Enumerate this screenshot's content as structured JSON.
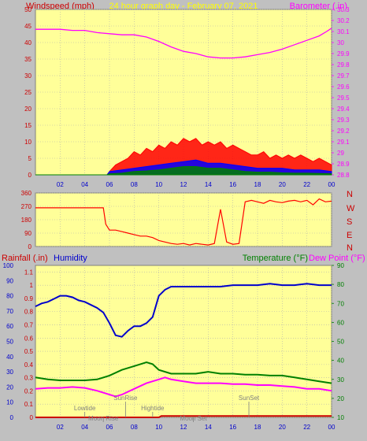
{
  "header": {
    "left_label": "Windspeed (mph)",
    "center_label": "24 hour graph day - February 07, 2021",
    "right_label": "Barometer (.in)"
  },
  "lower_header": {
    "rainfall_label": "Rainfall (.in)",
    "humidity_label": "Humidity",
    "temperature_label": "Temperature (°F)",
    "dewpoint_label": "Dew Point (°F)"
  },
  "colors": {
    "background": "#c0c0c0",
    "plot_bg": "#ffff99",
    "gust": "#ff0000",
    "wind_avg": "#0000ff",
    "wind_low": "#008000",
    "barometer": "#ff00ff",
    "direction": "#ff0000",
    "humidity": "#0000cc",
    "temperature": "#008000",
    "dewpoint": "#ff00ff",
    "rain": "#cc0000",
    "axis_red": "#cc0000",
    "axis_magenta": "#ff00ff",
    "axis_blue": "#0000cc",
    "axis_green": "#008000",
    "header_yellow": "#ffff00"
  },
  "x_tick_labels": [
    "02",
    "04",
    "06",
    "08",
    "10",
    "12",
    "14",
    "16",
    "18",
    "20",
    "22",
    "00"
  ],
  "events": [
    {
      "label": "Lowtide",
      "hour": 4.0,
      "row": 1
    },
    {
      "label": "SunRise",
      "hour": 7.3,
      "row": 0
    },
    {
      "label": "Moon Rise",
      "hour": 5.5,
      "row": 2
    },
    {
      "label": "Hightide",
      "hour": 9.5,
      "row": 1
    },
    {
      "label": "Moon Set",
      "hour": 12.8,
      "row": 2
    },
    {
      "label": "SunSet",
      "hour": 17.3,
      "row": 0
    }
  ],
  "compass": [
    "N",
    "W",
    "S",
    "E",
    "N"
  ],
  "chart_data": [
    {
      "type": "line",
      "name": "wind-barometer",
      "x_unit": "hour",
      "x_range": [
        0,
        24
      ],
      "left_axis": {
        "ylim": [
          0,
          50
        ],
        "ticks": [
          0,
          5,
          10,
          15,
          20,
          25,
          30,
          35,
          40,
          45,
          50
        ]
      },
      "right_axis": {
        "ylim": [
          28.8,
          30.3
        ],
        "ticks": [
          28.8,
          28.9,
          29,
          29.1,
          29.2,
          29.3,
          29.4,
          29.5,
          29.6,
          29.7,
          29.8,
          29.9,
          30,
          30.1,
          30.2,
          30.3
        ]
      },
      "series": [
        {
          "name": "Windspeed (mph)",
          "axis": "left",
          "style": "gust",
          "x": [
            0,
            1,
            2,
            3,
            4,
            5,
            5.8,
            6,
            6.5,
            7,
            7.5,
            8,
            8.5,
            9,
            9.5,
            10,
            10.5,
            11,
            11.5,
            12,
            12.5,
            13,
            13.5,
            14,
            14.5,
            15,
            15.5,
            16,
            16.5,
            17,
            17.5,
            18,
            18.5,
            19,
            19.5,
            20,
            20.5,
            21,
            21.5,
            22,
            22.5,
            23,
            23.5,
            24
          ],
          "y": [
            0,
            0,
            0,
            0,
            0,
            0,
            0,
            1,
            3,
            4,
            5,
            7,
            6,
            8,
            7,
            9,
            8,
            10,
            9,
            11,
            10,
            11,
            9,
            10,
            9,
            10,
            8,
            9,
            8,
            7,
            6,
            6,
            7,
            5,
            6,
            5,
            6,
            5,
            6,
            5,
            4,
            5,
            4,
            3
          ]
        },
        {
          "name": "Wind average",
          "axis": "left",
          "style": "avg",
          "x": [
            0,
            5.8,
            6,
            7,
            8,
            9,
            10,
            11,
            12,
            13,
            14,
            15,
            16,
            17,
            18,
            19,
            20,
            21,
            22,
            23,
            24
          ],
          "y": [
            0,
            0,
            1,
            1.5,
            2,
            2.5,
            3,
            3.5,
            4,
            4.5,
            3.5,
            3.5,
            3,
            2.5,
            2,
            2,
            2,
            1.5,
            1.5,
            1.5,
            1
          ]
        },
        {
          "name": "Wind low",
          "axis": "left",
          "style": "low",
          "x": [
            0,
            5.8,
            6,
            7,
            8,
            9,
            10,
            11,
            12,
            13,
            14,
            15,
            16,
            17,
            18,
            19,
            20,
            21,
            22,
            23,
            24
          ],
          "y": [
            0,
            0,
            0.3,
            0.5,
            1,
            1.2,
            1.5,
            2,
            2.5,
            2.5,
            2,
            2,
            1.5,
            1,
            0.8,
            0.8,
            0.6,
            0.5,
            0.5,
            0.4,
            0.3
          ]
        },
        {
          "name": "Barometer (.in)",
          "axis": "right",
          "style": "baro",
          "x": [
            0,
            1,
            2,
            3,
            4,
            5,
            6,
            7,
            8,
            9,
            10,
            11,
            12,
            13,
            14,
            15,
            16,
            17,
            18,
            19,
            20,
            21,
            22,
            23,
            23.6,
            24
          ],
          "y": [
            30.12,
            30.12,
            30.12,
            30.11,
            30.11,
            30.09,
            30.08,
            30.07,
            30.07,
            30.05,
            30.01,
            29.96,
            29.92,
            29.9,
            29.87,
            29.86,
            29.86,
            29.87,
            29.89,
            29.91,
            29.94,
            29.98,
            30.02,
            30.06,
            30.1,
            30.13
          ]
        }
      ]
    },
    {
      "type": "scatter",
      "name": "wind-direction",
      "x_unit": "hour",
      "x_range": [
        0,
        24
      ],
      "ylim": [
        0,
        360
      ],
      "ticks": [
        0,
        90,
        180,
        270,
        360
      ],
      "series": [
        {
          "name": "Wind direction",
          "x": [
            0,
            1,
            2,
            3,
            4,
            5,
            5.5,
            5.7,
            6,
            6.5,
            7,
            7.5,
            8,
            8.5,
            9,
            9.5,
            10,
            10.5,
            11,
            11.5,
            12,
            12.5,
            13,
            13.5,
            14,
            14.5,
            15,
            15.5,
            16,
            16.5,
            17,
            17.5,
            18,
            18.5,
            19,
            19.5,
            20,
            20.5,
            21,
            21.5,
            22,
            22.5,
            23,
            23.5,
            24
          ],
          "y": [
            260,
            260,
            260,
            260,
            260,
            260,
            260,
            150,
            110,
            110,
            100,
            90,
            80,
            70,
            70,
            60,
            40,
            30,
            20,
            15,
            20,
            10,
            20,
            15,
            10,
            20,
            250,
            30,
            15,
            20,
            300,
            310,
            300,
            290,
            310,
            300,
            295,
            305,
            310,
            300,
            310,
            280,
            320,
            300,
            305
          ]
        }
      ]
    },
    {
      "type": "line",
      "name": "humidity-temperature",
      "x_unit": "hour",
      "x_range": [
        0,
        24
      ],
      "left_outer_axis": {
        "ylim": [
          0,
          100
        ],
        "ticks": [
          0,
          10,
          20,
          30,
          40,
          50,
          60,
          70,
          80,
          90,
          100
        ]
      },
      "left_inner_axis": {
        "ylim": [
          0,
          1.15
        ],
        "ticks": [
          0,
          0.1,
          0.2,
          0.3,
          0.4,
          0.5,
          0.6,
          0.7,
          0.8,
          0.9,
          1,
          1.1
        ]
      },
      "right_axis": {
        "ylim": [
          10,
          90
        ],
        "ticks": [
          10,
          20,
          30,
          40,
          50,
          60,
          70,
          80,
          90
        ]
      },
      "series": [
        {
          "name": "Humidity",
          "axis": "left_outer",
          "style": "hum",
          "x": [
            0,
            0.5,
            1,
            1.5,
            2,
            2.5,
            3,
            3.5,
            4,
            4.5,
            5,
            5.5,
            6,
            6.5,
            7,
            7.5,
            8,
            8.5,
            9,
            9.5,
            10,
            10.5,
            11,
            12,
            13,
            14,
            15,
            16,
            17,
            18,
            19,
            20,
            21,
            22,
            23,
            24
          ],
          "y": [
            73,
            75,
            76,
            78,
            80,
            80,
            79,
            77,
            76,
            74,
            72,
            69,
            62,
            54,
            53,
            57,
            60,
            60,
            62,
            66,
            80,
            84,
            86,
            86,
            86,
            86,
            86,
            87,
            87,
            87,
            88,
            87,
            87,
            88,
            87,
            87
          ]
        },
        {
          "name": "Temperature (°F)",
          "axis": "right",
          "style": "temp",
          "x": [
            0,
            1,
            2,
            3,
            4,
            5,
            6,
            7,
            8,
            9,
            9.5,
            10,
            11,
            12,
            13,
            14,
            15,
            16,
            17,
            18,
            19,
            20,
            21,
            22,
            23,
            24
          ],
          "y": [
            31,
            30,
            29.5,
            29.5,
            29.5,
            30,
            32,
            35,
            37,
            39,
            38,
            35,
            33,
            33,
            33,
            34,
            33,
            33,
            32.5,
            32.5,
            32,
            32,
            31,
            30,
            29,
            28
          ]
        },
        {
          "name": "Dew Point (°F)",
          "axis": "right",
          "style": "dew",
          "x": [
            0,
            1,
            2,
            3,
            4,
            5,
            6,
            6.5,
            7,
            8,
            9,
            10,
            10.5,
            11,
            12,
            13,
            14,
            15,
            16,
            17,
            18,
            19,
            20,
            21,
            22,
            23,
            24
          ],
          "y": [
            25,
            25.5,
            25.5,
            26,
            25.5,
            24,
            22,
            21,
            22,
            25,
            28,
            30,
            31,
            30,
            29,
            28,
            28,
            28,
            27.5,
            27.5,
            27,
            27,
            26.5,
            26,
            25,
            25,
            24
          ]
        },
        {
          "name": "Rainfall (.in)",
          "axis": "left_inner",
          "style": "rain",
          "x": [
            0,
            1,
            2,
            3,
            4,
            5,
            6,
            7,
            8,
            9,
            10,
            10.2,
            11,
            12,
            13,
            14,
            15,
            16,
            17,
            18,
            19,
            20,
            21,
            22,
            23,
            24
          ],
          "y": [
            0,
            0,
            0,
            0,
            0,
            0,
            0,
            0,
            0,
            0,
            0,
            0.01,
            0.01,
            0.01,
            0.01,
            0.01,
            0.01,
            0.01,
            0.01,
            0.01,
            0.01,
            0.01,
            0.01,
            0.01,
            0.01,
            0.01
          ]
        }
      ]
    }
  ]
}
